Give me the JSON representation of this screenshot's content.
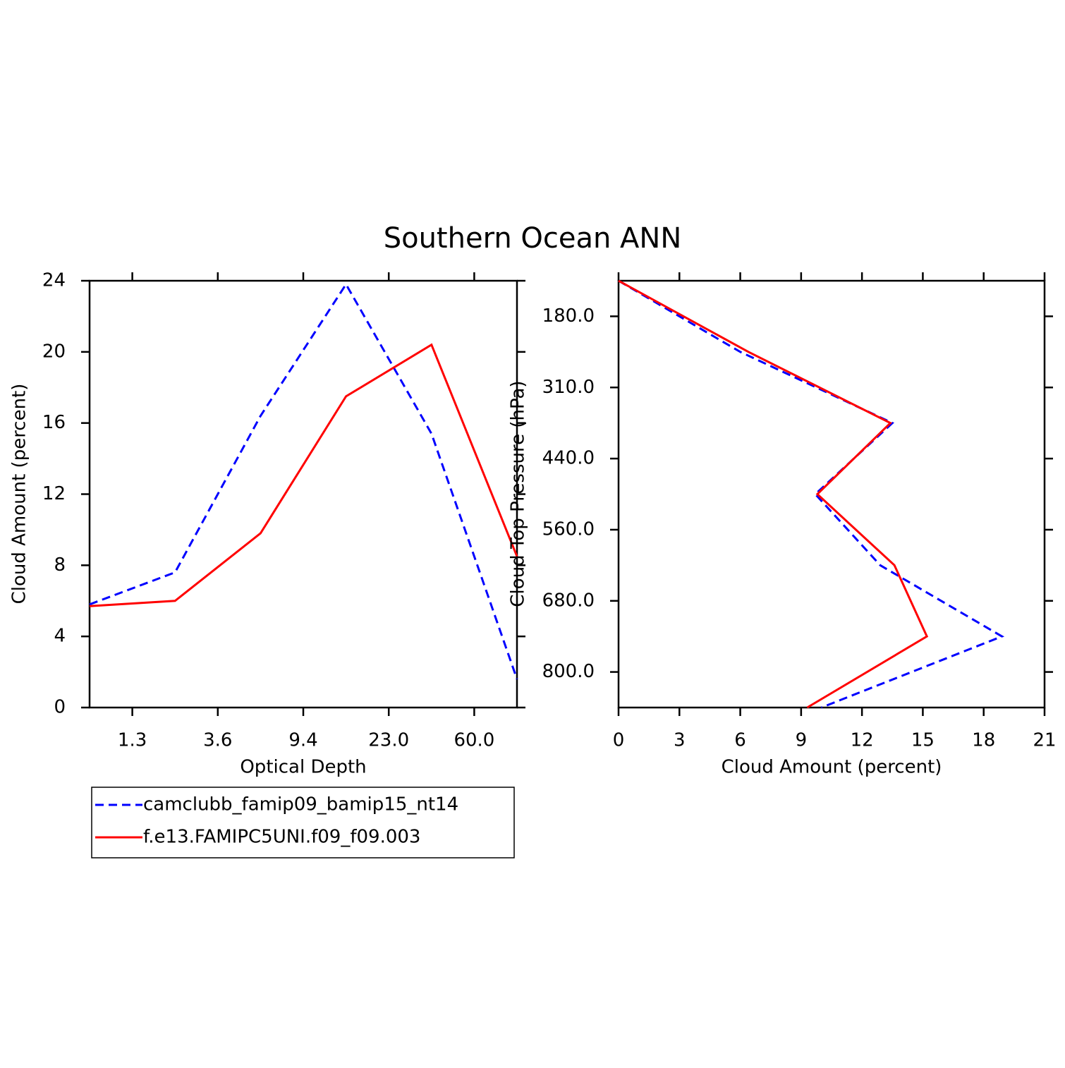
{
  "title": "Southern Ocean ANN",
  "chart_data": [
    {
      "type": "line",
      "orientation": "vertical",
      "xlabel": "Optical Depth",
      "ylabel": "Cloud Amount (percent)",
      "x": [
        0,
        1,
        2,
        3,
        4,
        5
      ],
      "xlim": [
        0,
        5
      ],
      "xticks": [
        {
          "value": 0.5,
          "label": "1.3"
        },
        {
          "value": 1.5,
          "label": "3.6"
        },
        {
          "value": 2.5,
          "label": "9.4"
        },
        {
          "value": 3.5,
          "label": "23.0"
        },
        {
          "value": 4.5,
          "label": "60.0"
        }
      ],
      "ylim": [
        0,
        24
      ],
      "yticks": [
        0,
        4,
        8,
        12,
        16,
        20,
        24
      ],
      "series": [
        {
          "name": "camclubb_famip09_bamip15_nt14",
          "color": "#0000ff",
          "linestyle": "dashed",
          "values": [
            5.8,
            7.6,
            16.4,
            23.8,
            15.4,
            1.6
          ]
        },
        {
          "name": "f.e13.FAMIPC5UNI.f09_f09.003",
          "color": "#ff0000",
          "linestyle": "solid",
          "values": [
            5.7,
            6.0,
            9.8,
            17.5,
            20.4,
            8.5
          ]
        }
      ]
    },
    {
      "type": "line",
      "orientation": "horizontal",
      "xlabel": "Cloud Amount (percent)",
      "ylabel": "Cloud Top Pressure (hPa)",
      "y": [
        0,
        1,
        2,
        3,
        4,
        5,
        6
      ],
      "ylim": [
        6,
        0
      ],
      "yticks": [
        {
          "value": 0.5,
          "label": "180.0"
        },
        {
          "value": 1.5,
          "label": "310.0"
        },
        {
          "value": 2.5,
          "label": "440.0"
        },
        {
          "value": 3.5,
          "label": "560.0"
        },
        {
          "value": 4.5,
          "label": "680.0"
        },
        {
          "value": 5.5,
          "label": "800.0"
        }
      ],
      "xlim": [
        0,
        21
      ],
      "xticks": [
        0,
        3,
        6,
        9,
        12,
        15,
        18,
        21
      ],
      "series": [
        {
          "color": "#0000ff",
          "linestyle": "dashed",
          "values": [
            0,
            6.0,
            13.5,
            9.7,
            12.9,
            18.9,
            10.0
          ]
        },
        {
          "color": "#ff0000",
          "linestyle": "solid",
          "values": [
            0,
            6.4,
            13.4,
            9.8,
            13.6,
            15.2,
            9.3
          ]
        }
      ]
    }
  ]
}
